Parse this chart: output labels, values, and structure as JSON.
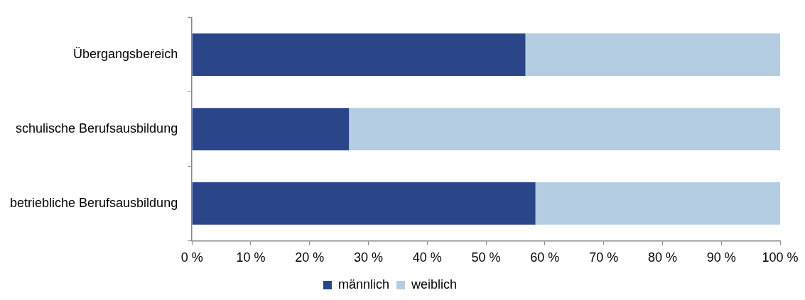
{
  "chart_data": {
    "type": "bar",
    "orientation": "horizontal",
    "stacked": true,
    "categories": [
      "Übergangsbereich",
      "schulische Berufsausbildung",
      "betriebliche Berufsausbildung"
    ],
    "series": [
      {
        "name": "männlich",
        "color": "#2a4688",
        "values": [
          56.7,
          26.7,
          58.4
        ]
      },
      {
        "name": "weiblich",
        "color": "#b5cde2",
        "values": [
          43.3,
          73.3,
          41.6
        ]
      }
    ],
    "xlim": [
      0,
      100
    ],
    "xticks": [
      {
        "value": 0,
        "label": "0 %"
      },
      {
        "value": 10,
        "label": "10 %"
      },
      {
        "value": 20,
        "label": "20 %"
      },
      {
        "value": 30,
        "label": "30 %"
      },
      {
        "value": 40,
        "label": "40 %"
      },
      {
        "value": 50,
        "label": "50 %"
      },
      {
        "value": 60,
        "label": "60 %"
      },
      {
        "value": 70,
        "label": "70 %"
      },
      {
        "value": 80,
        "label": "80 %"
      },
      {
        "value": 90,
        "label": "90 %"
      },
      {
        "value": 100,
        "label": "100 %"
      }
    ],
    "grid": false,
    "legend": "bottom"
  }
}
